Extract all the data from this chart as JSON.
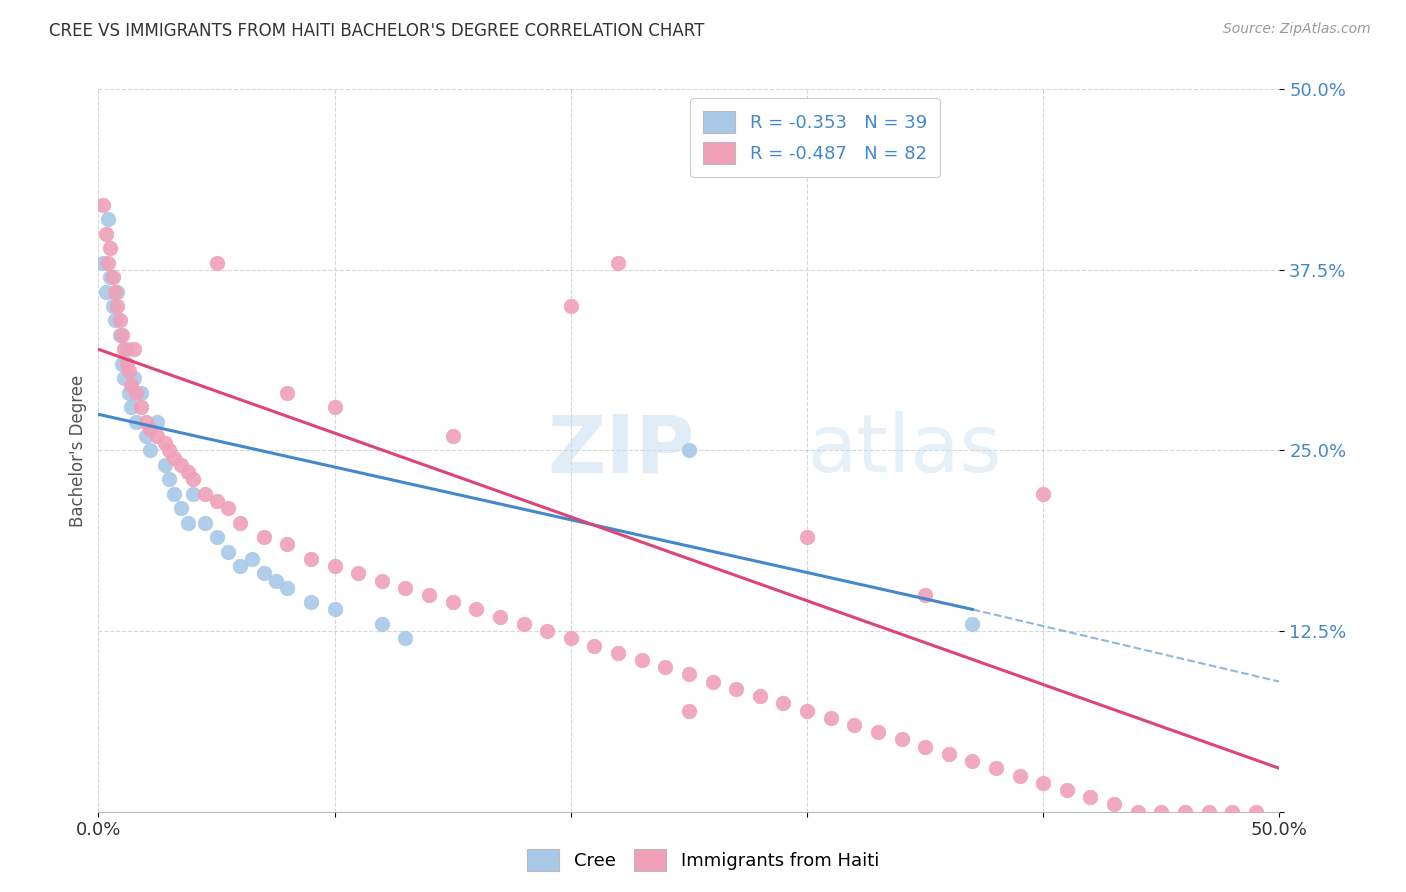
{
  "title": "CREE VS IMMIGRANTS FROM HAITI BACHELOR'S DEGREE CORRELATION CHART",
  "source": "Source: ZipAtlas.com",
  "ylabel": "Bachelor's Degree",
  "legend_label1": "Cree",
  "legend_label2": "Immigrants from Haiti",
  "r1": -0.353,
  "n1": 39,
  "r2": -0.487,
  "n2": 82,
  "color_cree": "#a8c8e8",
  "color_haiti": "#f0a0b8",
  "line_color_cree": "#4488cc",
  "line_color_haiti": "#dd4477",
  "xlim": [
    0.0,
    0.5
  ],
  "ylim": [
    0.0,
    0.5
  ],
  "yticks": [
    0.0,
    0.125,
    0.25,
    0.375,
    0.5
  ],
  "ytick_labels": [
    "",
    "12.5%",
    "25.0%",
    "37.5%",
    "50.0%"
  ],
  "cree_x": [
    0.002,
    0.003,
    0.004,
    0.005,
    0.006,
    0.007,
    0.008,
    0.009,
    0.01,
    0.011,
    0.012,
    0.013,
    0.014,
    0.015,
    0.016,
    0.018,
    0.02,
    0.022,
    0.025,
    0.028,
    0.03,
    0.032,
    0.035,
    0.038,
    0.04,
    0.045,
    0.05,
    0.055,
    0.06,
    0.065,
    0.07,
    0.075,
    0.08,
    0.09,
    0.1,
    0.12,
    0.13,
    0.25,
    0.37
  ],
  "cree_y": [
    0.38,
    0.36,
    0.41,
    0.37,
    0.35,
    0.34,
    0.36,
    0.33,
    0.31,
    0.3,
    0.32,
    0.29,
    0.28,
    0.3,
    0.27,
    0.29,
    0.26,
    0.25,
    0.27,
    0.24,
    0.23,
    0.22,
    0.21,
    0.2,
    0.22,
    0.2,
    0.19,
    0.18,
    0.17,
    0.175,
    0.165,
    0.16,
    0.155,
    0.145,
    0.14,
    0.13,
    0.12,
    0.25,
    0.13
  ],
  "haiti_x": [
    0.002,
    0.003,
    0.004,
    0.005,
    0.006,
    0.007,
    0.008,
    0.009,
    0.01,
    0.011,
    0.012,
    0.013,
    0.014,
    0.015,
    0.016,
    0.018,
    0.02,
    0.022,
    0.025,
    0.028,
    0.03,
    0.032,
    0.035,
    0.038,
    0.04,
    0.045,
    0.05,
    0.055,
    0.06,
    0.07,
    0.08,
    0.09,
    0.1,
    0.11,
    0.12,
    0.13,
    0.14,
    0.15,
    0.16,
    0.17,
    0.18,
    0.19,
    0.2,
    0.21,
    0.22,
    0.23,
    0.24,
    0.25,
    0.26,
    0.27,
    0.28,
    0.29,
    0.3,
    0.31,
    0.32,
    0.33,
    0.34,
    0.35,
    0.36,
    0.37,
    0.38,
    0.39,
    0.4,
    0.41,
    0.42,
    0.43,
    0.44,
    0.45,
    0.46,
    0.47,
    0.48,
    0.49,
    0.1,
    0.2,
    0.3,
    0.4,
    0.22,
    0.15,
    0.05,
    0.08,
    0.35,
    0.25
  ],
  "haiti_y": [
    0.42,
    0.4,
    0.38,
    0.39,
    0.37,
    0.36,
    0.35,
    0.34,
    0.33,
    0.32,
    0.31,
    0.305,
    0.295,
    0.32,
    0.29,
    0.28,
    0.27,
    0.265,
    0.26,
    0.255,
    0.25,
    0.245,
    0.24,
    0.235,
    0.23,
    0.22,
    0.215,
    0.21,
    0.2,
    0.19,
    0.185,
    0.175,
    0.17,
    0.165,
    0.16,
    0.155,
    0.15,
    0.145,
    0.14,
    0.135,
    0.13,
    0.125,
    0.12,
    0.115,
    0.11,
    0.105,
    0.1,
    0.095,
    0.09,
    0.085,
    0.08,
    0.075,
    0.07,
    0.065,
    0.06,
    0.055,
    0.05,
    0.045,
    0.04,
    0.035,
    0.03,
    0.025,
    0.02,
    0.015,
    0.01,
    0.005,
    0.0,
    0.0,
    0.0,
    0.0,
    0.0,
    0.0,
    0.28,
    0.35,
    0.19,
    0.22,
    0.38,
    0.26,
    0.38,
    0.29,
    0.15,
    0.07
  ],
  "line_cree_x0": 0.0,
  "line_cree_y0": 0.275,
  "line_cree_x1": 0.37,
  "line_cree_y1": 0.14,
  "line_cree_dash_x0": 0.37,
  "line_cree_dash_y0": 0.14,
  "line_cree_dash_x1": 0.5,
  "line_cree_dash_y1": 0.09,
  "line_haiti_x0": 0.0,
  "line_haiti_y0": 0.32,
  "line_haiti_x1": 0.5,
  "line_haiti_y1": 0.03
}
